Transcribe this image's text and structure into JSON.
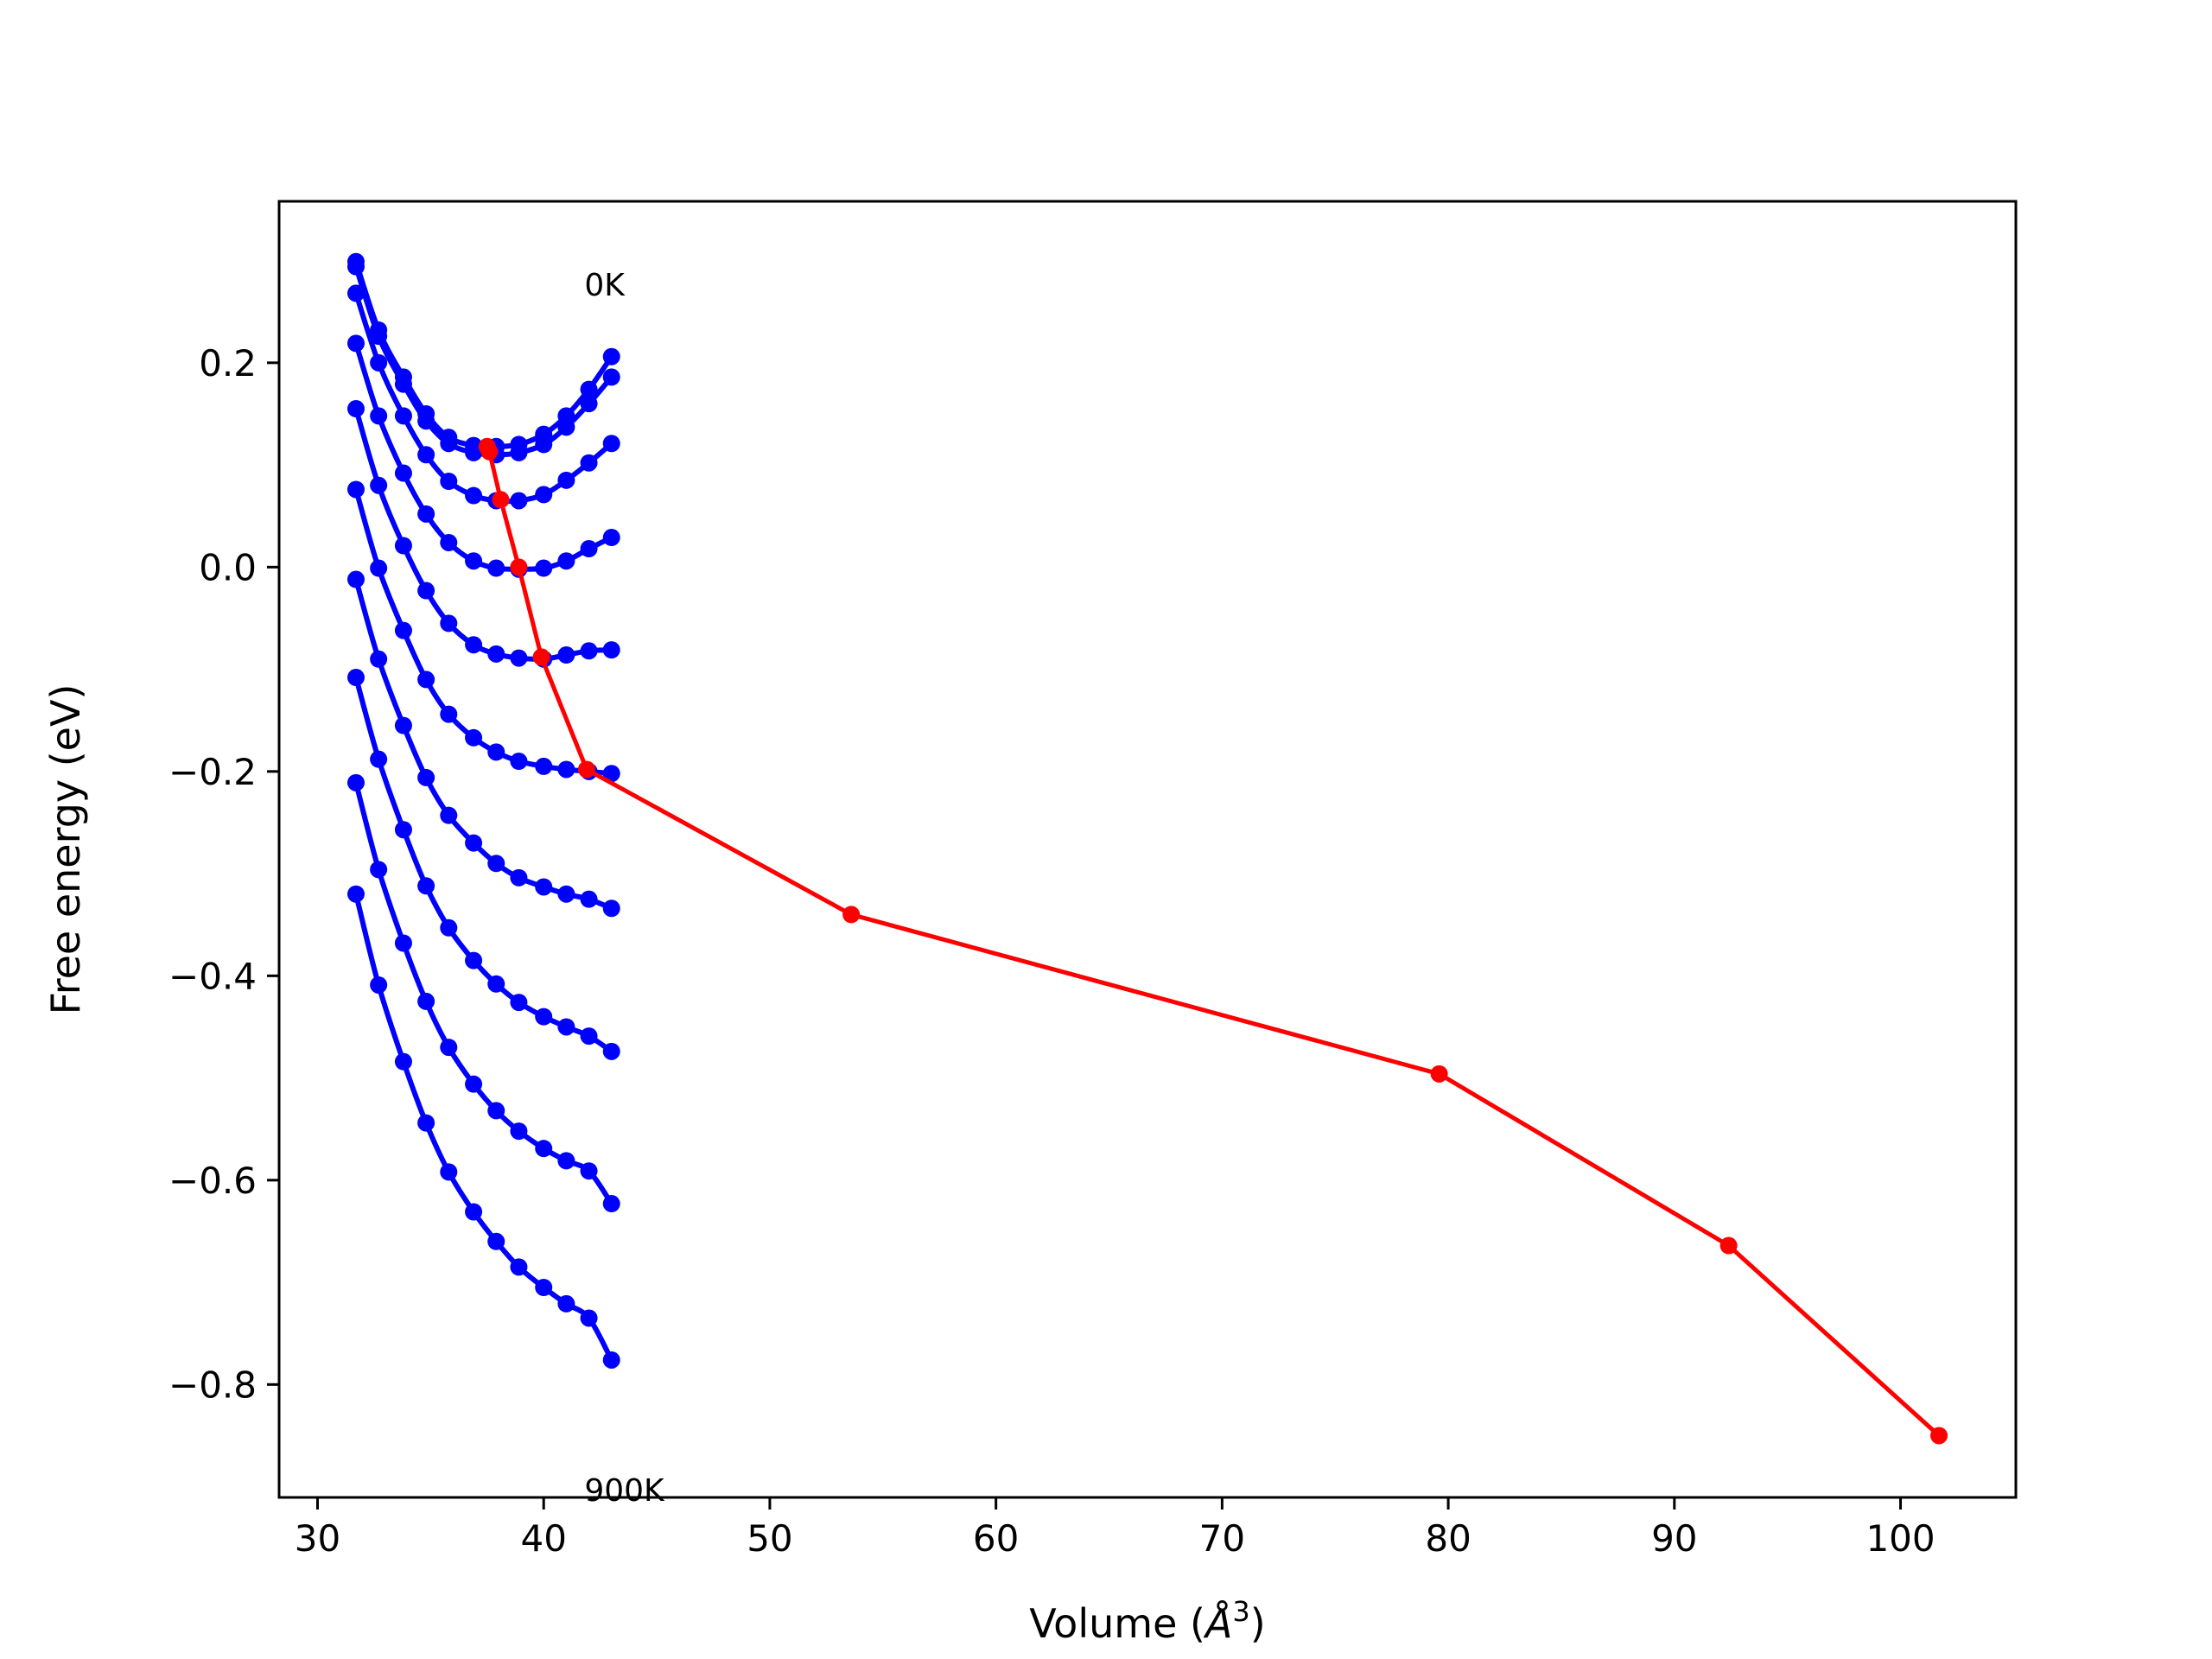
{
  "chart_data": {
    "type": "line",
    "xlabel": "Volume ($\\AA^3$)",
    "ylabel": "Free energy (eV)",
    "xlim": [
      28.3,
      105.1
    ],
    "ylim": [
      -0.9105,
      0.358
    ],
    "xticks": [
      30,
      40,
      50,
      60,
      70,
      80,
      90,
      100
    ],
    "yticks": [
      -0.8,
      -0.6,
      -0.4,
      -0.2,
      0.0,
      0.2
    ],
    "xtick_labels": [
      "30",
      "40",
      "50",
      "60",
      "70",
      "80",
      "90",
      "100"
    ],
    "ytick_labels": [
      "−0.8",
      "−0.6",
      "−0.4",
      "−0.2",
      "0.0",
      "0.2"
    ],
    "grid": false,
    "annotations": [
      {
        "text": "0K",
        "x": 41.8,
        "y": 0.266
      },
      {
        "text": "900K",
        "x": 41.8,
        "y": -0.914
      }
    ],
    "blue_color": "#0000ff",
    "red_color": "#ff0000",
    "volumes": [
      31.7,
      32.7,
      33.8,
      34.8,
      35.8,
      36.9,
      37.9,
      38.9,
      40.0,
      41.0,
      42.0,
      43.0
    ],
    "isotherms": [
      {
        "values": [
          0.299,
          0.232,
          0.186,
          0.15,
          0.127,
          0.119,
          0.118,
          0.12,
          0.13,
          0.148,
          0.174,
          0.206
        ]
      },
      {
        "values": [
          0.294,
          0.226,
          0.179,
          0.143,
          0.121,
          0.112,
          0.11,
          0.112,
          0.12,
          0.137,
          0.16,
          0.186
        ]
      },
      {
        "values": [
          0.268,
          0.2,
          0.148,
          0.11,
          0.084,
          0.07,
          0.065,
          0.065,
          0.071,
          0.085,
          0.102,
          0.121
        ]
      },
      {
        "values": [
          0.219,
          0.148,
          0.092,
          0.052,
          0.024,
          0.006,
          -0.001,
          -0.002,
          -0.001,
          0.006,
          0.018,
          0.029
        ]
      },
      {
        "values": [
          0.155,
          0.08,
          0.021,
          -0.023,
          -0.055,
          -0.076,
          -0.085,
          -0.089,
          -0.09,
          -0.086,
          -0.082,
          -0.081
        ]
      },
      {
        "values": [
          0.076,
          -0.001,
          -0.062,
          -0.11,
          -0.144,
          -0.167,
          -0.181,
          -0.19,
          -0.195,
          -0.198,
          -0.2,
          -0.202
        ]
      },
      {
        "values": [
          -0.012,
          -0.09,
          -0.155,
          -0.206,
          -0.243,
          -0.27,
          -0.29,
          -0.304,
          -0.313,
          -0.32,
          -0.325,
          -0.334
        ]
      },
      {
        "values": [
          -0.108,
          -0.188,
          -0.257,
          -0.312,
          -0.353,
          -0.385,
          -0.408,
          -0.426,
          -0.44,
          -0.45,
          -0.459,
          -0.474
        ]
      },
      {
        "values": [
          -0.211,
          -0.296,
          -0.368,
          -0.425,
          -0.47,
          -0.506,
          -0.532,
          -0.552,
          -0.569,
          -0.581,
          -0.591,
          -0.623
        ]
      },
      {
        "values": [
          -0.32,
          -0.409,
          -0.484,
          -0.544,
          -0.592,
          -0.631,
          -0.66,
          -0.685,
          -0.705,
          -0.721,
          -0.735,
          -0.776
        ]
      }
    ],
    "series": [
      {
        "x": [
          37.5,
          37.6,
          38.1,
          38.9,
          39.9,
          41.9,
          53.6,
          79.6,
          92.4,
          101.7
        ],
        "y": [
          0.118,
          0.113,
          0.066,
          0.0,
          -0.088,
          -0.198,
          -0.34,
          -0.496,
          -0.664,
          -0.85
        ]
      }
    ]
  }
}
